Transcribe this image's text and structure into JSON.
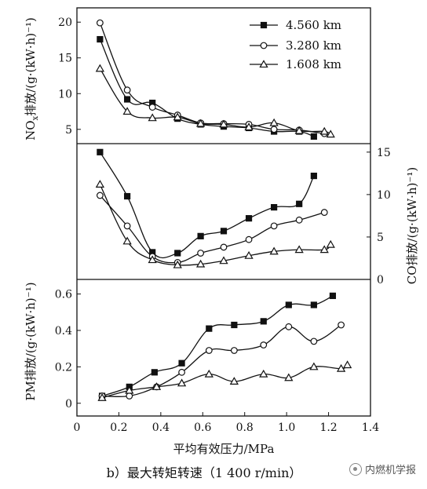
{
  "chart_data": {
    "type": "line",
    "caption": "b）最大转矩转速（1 400 r/min）",
    "xlabel": "平均有效压力/MPa",
    "xlim": [
      0,
      1.4
    ],
    "xticks": [
      "0",
      "0.2",
      "0.4",
      "0.6",
      "0.8",
      "1.0",
      "1.2",
      "1.4"
    ],
    "legend_position": "top-right",
    "legend": [
      "4.560 km",
      "3.280 km",
      "1.608 km"
    ],
    "panels": [
      {
        "id": "nox",
        "ylabel": "NOx排放/(g·(kW·h)⁻¹)",
        "ylabel_main": "NO",
        "ylabel_sub": "x",
        "ylabel_rest": "排放/(g·(kW·h)⁻¹)",
        "ylabel_side": "left",
        "ylim": [
          3,
          22
        ],
        "yticks": [
          5,
          10,
          15,
          20
        ],
        "ytick_labels": [
          "5",
          "10",
          "15",
          "20"
        ],
        "series": [
          {
            "name": "4.560 km",
            "marker": "square-filled",
            "x": [
              0.11,
              0.24,
              0.36,
              0.48,
              0.59,
              0.7,
              0.82,
              0.94,
              1.06,
              1.13
            ],
            "y": [
              17.6,
              9.2,
              8.7,
              6.5,
              5.7,
              5.4,
              5.2,
              4.7,
              4.7,
              4.0
            ]
          },
          {
            "name": "3.280 km",
            "marker": "circle-open",
            "x": [
              0.11,
              0.24,
              0.36,
              0.48,
              0.59,
              0.7,
              0.82,
              0.94,
              1.06,
              1.18
            ],
            "y": [
              19.9,
              10.5,
              8.1,
              7.0,
              5.9,
              5.8,
              5.7,
              5.0,
              4.9,
              4.4
            ]
          },
          {
            "name": "1.608 km",
            "marker": "triangle-open",
            "x": [
              0.11,
              0.24,
              0.36,
              0.48,
              0.59,
              0.7,
              0.82,
              0.94,
              1.06,
              1.18,
              1.21
            ],
            "y": [
              13.5,
              7.5,
              6.6,
              6.7,
              5.8,
              5.7,
              5.3,
              5.9,
              4.8,
              4.7,
              4.3
            ]
          }
        ]
      },
      {
        "id": "co",
        "ylabel": "CO排放/(g·(kW·h)⁻¹)",
        "ylabel_side": "right",
        "ylim": [
          0,
          16
        ],
        "yticks": [
          0,
          5,
          10,
          15
        ],
        "ytick_labels": [
          "0",
          "5",
          "10",
          "15"
        ],
        "series": [
          {
            "name": "4.560 km",
            "marker": "square-filled",
            "x": [
              0.11,
              0.24,
              0.36,
              0.48,
              0.59,
              0.7,
              0.82,
              0.94,
              1.06,
              1.13
            ],
            "y": [
              15.0,
              9.8,
              3.2,
              3.1,
              5.1,
              5.7,
              7.2,
              8.5,
              8.9,
              12.2
            ]
          },
          {
            "name": "3.280 km",
            "marker": "circle-open",
            "x": [
              0.11,
              0.24,
              0.36,
              0.48,
              0.59,
              0.7,
              0.82,
              0.94,
              1.06,
              1.18
            ],
            "y": [
              9.9,
              6.3,
              2.7,
              2.0,
              3.1,
              3.8,
              4.7,
              6.3,
              7.0,
              7.9
            ]
          },
          {
            "name": "1.608 km",
            "marker": "triangle-open",
            "x": [
              0.11,
              0.24,
              0.36,
              0.48,
              0.59,
              0.7,
              0.82,
              0.94,
              1.06,
              1.18,
              1.21
            ],
            "y": [
              11.2,
              4.5,
              2.3,
              1.7,
              1.8,
              2.2,
              2.8,
              3.3,
              3.5,
              3.5,
              4.1
            ]
          }
        ]
      },
      {
        "id": "pm",
        "ylabel": "PM排放/(g·(kW·h)⁻¹)",
        "ylabel_side": "left",
        "ylim": [
          -0.07,
          0.68
        ],
        "yticks": [
          0,
          0.2,
          0.4,
          0.6
        ],
        "ytick_labels": [
          "0",
          "0.2",
          "0.4",
          "0.6"
        ],
        "series": [
          {
            "name": "4.560 km",
            "marker": "square-filled",
            "x": [
              0.12,
              0.25,
              0.37,
              0.5,
              0.63,
              0.75,
              0.89,
              1.01,
              1.13,
              1.22
            ],
            "y": [
              0.04,
              0.09,
              0.17,
              0.22,
              0.41,
              0.43,
              0.45,
              0.54,
              0.54,
              0.59
            ]
          },
          {
            "name": "3.280 km",
            "marker": "circle-open",
            "x": [
              0.12,
              0.25,
              0.38,
              0.5,
              0.63,
              0.75,
              0.89,
              1.01,
              1.13,
              1.26
            ],
            "y": [
              0.04,
              0.04,
              0.09,
              0.17,
              0.29,
              0.29,
              0.32,
              0.42,
              0.34,
              0.43
            ]
          },
          {
            "name": "1.608 km",
            "marker": "triangle-open",
            "x": [
              0.12,
              0.25,
              0.38,
              0.5,
              0.63,
              0.75,
              0.89,
              1.01,
              1.13,
              1.26,
              1.29
            ],
            "y": [
              0.03,
              0.07,
              0.09,
              0.11,
              0.16,
              0.12,
              0.16,
              0.14,
              0.2,
              0.19,
              0.21
            ]
          }
        ]
      }
    ]
  },
  "watermark": {
    "icon": "wechat-official-account-icon",
    "text": "内燃机学报"
  }
}
